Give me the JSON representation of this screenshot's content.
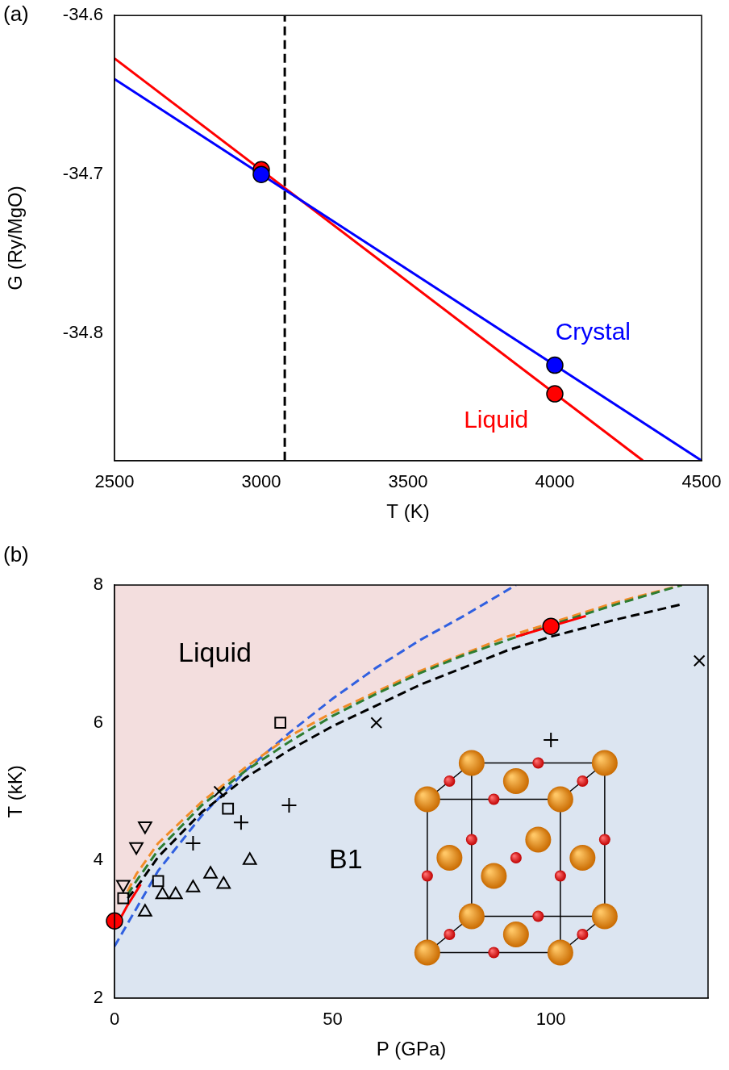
{
  "chart_data": [
    {
      "type": "line",
      "panel_label": "(a)",
      "x_label": "T (K)",
      "y_label": "G (Ry/MgO)",
      "xlim": [
        2500,
        4500
      ],
      "xticks": [
        2500,
        3000,
        3500,
        4000,
        4500
      ],
      "ylim": [
        -34.88,
        -34.6
      ],
      "yticks": [
        -34.8,
        -34.7,
        -34.6
      ],
      "grid": false,
      "series": [
        {
          "type": "scatter",
          "color": "#0000ff",
          "marker": "circle",
          "values": [
            [
              3000,
              -34.7
            ],
            [
              4000,
              -34.82
            ]
          ]
        },
        {
          "type": "scatter",
          "color": "#ff0000",
          "marker": "circle",
          "values": [
            [
              3000,
              -34.697
            ],
            [
              4000,
              -34.838
            ]
          ]
        },
        {
          "type": "line",
          "color": "#0000ff",
          "line_style": "solid",
          "marker": "none",
          "values": [
            [
              2500,
              -34.64
            ],
            [
              4500,
              -34.88
            ]
          ]
        },
        {
          "type": "line",
          "color": "#ff0000",
          "line_style": "solid",
          "marker": "none",
          "values": [
            [
              2500,
              -34.627
            ],
            [
              4300,
              -34.88
            ]
          ]
        },
        {
          "type": "line",
          "color": "#000000",
          "line_style": "dashed",
          "marker": "none",
          "values": [
            [
              3080,
              -34.88
            ],
            [
              3080,
              -34.6
            ]
          ]
        }
      ],
      "annotations": [
        {
          "text": "Crystal",
          "x": 4130,
          "y": -34.8,
          "color": "#0000ff"
        },
        {
          "text": "Liquid",
          "x": 3800,
          "y": -34.855,
          "color": "#ff0000"
        }
      ]
    },
    {
      "type": "scatter",
      "panel_label": "(b)",
      "x_label": "P (GPa)",
      "y_label": "T (kK)",
      "xlim": [
        0,
        136
      ],
      "xticks": [
        0,
        50,
        100
      ],
      "ylim": [
        2,
        8
      ],
      "yticks": [
        2,
        4,
        6,
        8
      ],
      "grid": false,
      "regions": [
        {
          "text": "Liquid",
          "color": "#f3dede",
          "x": 23,
          "y": 7.0
        },
        {
          "text": "B1",
          "color": "#dce5f1",
          "x": 53,
          "y": 4.0
        }
      ],
      "phase_boundary": [
        [
          0,
          3.1
        ],
        [
          5,
          3.75
        ],
        [
          10,
          4.2
        ],
        [
          20,
          4.85
        ],
        [
          30,
          5.35
        ],
        [
          40,
          5.8
        ],
        [
          50,
          6.15
        ],
        [
          60,
          6.45
        ],
        [
          70,
          6.75
        ],
        [
          80,
          7.0
        ],
        [
          90,
          7.25
        ],
        [
          100,
          7.45
        ],
        [
          115,
          7.75
        ],
        [
          130,
          8.0
        ],
        [
          136,
          8.1
        ]
      ],
      "series": [
        {
          "type": "scatter",
          "color": "#ff0000",
          "marker": "circle",
          "values": [
            [
              0,
              3.12
            ],
            [
              100,
              7.4
            ]
          ]
        },
        {
          "type": "scatter",
          "color": "#000000",
          "marker": "square",
          "values": [
            [
              2,
              3.45
            ],
            [
              10,
              3.7
            ],
            [
              26,
              4.75
            ],
            [
              38,
              6.0
            ]
          ]
        },
        {
          "type": "scatter",
          "color": "#000000",
          "marker": "triangle-down",
          "values": [
            [
              2,
              3.65
            ],
            [
              5,
              4.2
            ],
            [
              7,
              4.5
            ]
          ]
        },
        {
          "type": "scatter",
          "color": "#000000",
          "marker": "triangle-up",
          "values": [
            [
              7,
              3.25
            ],
            [
              11,
              3.5
            ],
            [
              14,
              3.5
            ],
            [
              18,
              3.6
            ],
            [
              22,
              3.8
            ],
            [
              25,
              3.65
            ],
            [
              31,
              4.0
            ]
          ]
        },
        {
          "type": "scatter",
          "color": "#000000",
          "marker": "plus",
          "values": [
            [
              18,
              4.25
            ],
            [
              29,
              4.55
            ],
            [
              40,
              4.8
            ],
            [
              100,
              5.75
            ]
          ]
        },
        {
          "type": "scatter",
          "color": "#000000",
          "marker": "x",
          "values": [
            [
              24,
              5.0
            ],
            [
              60,
              6.0
            ],
            [
              134,
              6.9
            ]
          ]
        },
        {
          "type": "line",
          "color": "#ff0000",
          "line_style": "solid",
          "marker": "none",
          "values": [
            [
              0,
              3.0
            ],
            [
              3,
              3.35
            ],
            [
              6,
              3.65
            ],
            [
              50,
              null
            ],
            [
              92,
              7.25
            ],
            [
              100,
              7.4
            ],
            [
              108,
              7.55
            ]
          ]
        },
        {
          "type": "line",
          "color": "#000000",
          "line_style": "dashed",
          "marker": "none",
          "values": [
            [
              3,
              3.45
            ],
            [
              5,
              3.6
            ],
            [
              10,
              4.05
            ],
            [
              20,
              4.7
            ],
            [
              30,
              5.2
            ],
            [
              40,
              5.6
            ],
            [
              50,
              5.95
            ],
            [
              60,
              6.25
            ],
            [
              70,
              6.55
            ],
            [
              80,
              6.8
            ],
            [
              90,
              7.05
            ],
            [
              100,
              7.25
            ],
            [
              115,
              7.5
            ],
            [
              130,
              7.72
            ]
          ]
        },
        {
          "type": "line",
          "color": "#2e7d32",
          "line_style": "dashed",
          "marker": "none",
          "values": [
            [
              3,
              3.5
            ],
            [
              5,
              3.7
            ],
            [
              10,
              4.15
            ],
            [
              20,
              4.8
            ],
            [
              30,
              5.3
            ],
            [
              40,
              5.72
            ],
            [
              50,
              6.1
            ],
            [
              60,
              6.42
            ],
            [
              70,
              6.72
            ],
            [
              80,
              6.98
            ],
            [
              90,
              7.2
            ],
            [
              100,
              7.42
            ],
            [
              115,
              7.72
            ],
            [
              130,
              8.0
            ]
          ]
        },
        {
          "type": "line",
          "color": "#f28c28",
          "line_style": "dashed",
          "marker": "none",
          "values": [
            [
              3,
              3.55
            ],
            [
              5,
              3.8
            ],
            [
              10,
              4.25
            ],
            [
              20,
              4.85
            ],
            [
              30,
              5.35
            ],
            [
              40,
              5.8
            ],
            [
              50,
              6.15
            ],
            [
              60,
              6.45
            ],
            [
              70,
              6.75
            ],
            [
              80,
              7.0
            ],
            [
              90,
              7.25
            ],
            [
              100,
              7.45
            ],
            [
              115,
              7.75
            ],
            [
              130,
              8.0
            ]
          ]
        },
        {
          "type": "line",
          "color": "#3060e0",
          "line_style": "dashed",
          "marker": "none",
          "values": [
            [
              0,
              2.75
            ],
            [
              5,
              3.3
            ],
            [
              10,
              3.85
            ],
            [
              20,
              4.65
            ],
            [
              30,
              5.3
            ],
            [
              40,
              5.85
            ],
            [
              50,
              6.35
            ],
            [
              60,
              6.8
            ],
            [
              70,
              7.2
            ],
            [
              80,
              7.55
            ],
            [
              92,
              8.0
            ]
          ]
        }
      ]
    }
  ]
}
